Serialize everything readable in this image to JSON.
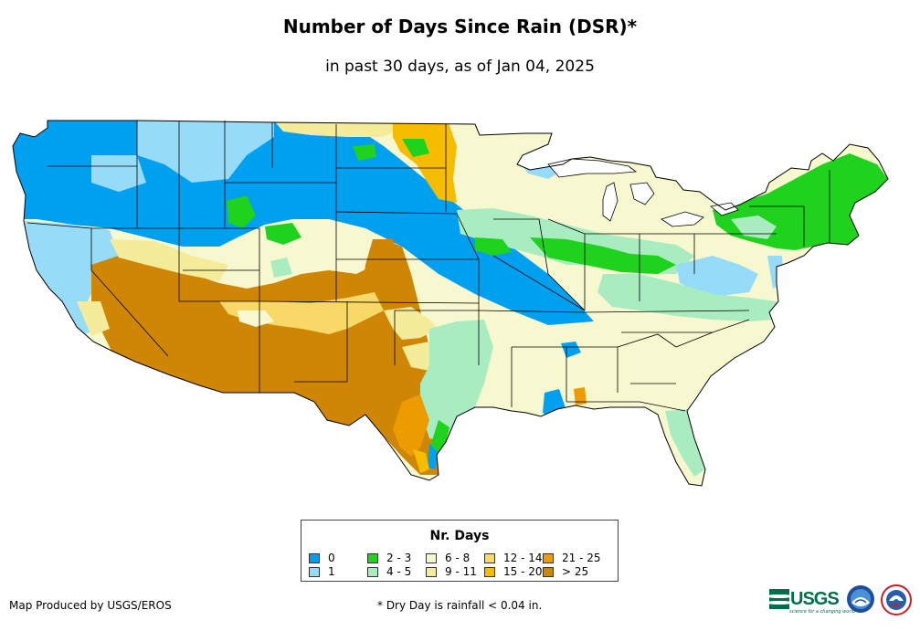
{
  "title": "Number of Days Since Rain (DSR)*",
  "subtitle": "in past 30 days, as of Jan 04, 2025",
  "legend": {
    "title": "Nr. Days",
    "items": [
      {
        "label": "0",
        "color": "#00a0f0"
      },
      {
        "label": "1",
        "color": "#96dcf8"
      },
      {
        "label": "2 - 3",
        "color": "#1ed21e"
      },
      {
        "label": "4 - 5",
        "color": "#a8ecc0"
      },
      {
        "label": "6 - 8",
        "color": "#f8f8d0"
      },
      {
        "label": "9 - 11",
        "color": "#f4ec9a"
      },
      {
        "label": "12 - 14",
        "color": "#f8d866"
      },
      {
        "label": "15 - 20",
        "color": "#f6bc00"
      },
      {
        "label": "21 - 25",
        "color": "#ec9c00"
      },
      {
        "label": "> 25",
        "color": "#cf8604"
      }
    ]
  },
  "footer": {
    "producer": "Map Produced by USGS/EROS",
    "footnote": "* Dry Day is rainfall < 0.04 in."
  },
  "logos": {
    "usgs": "USGS",
    "usgs_tagline": "science for a changing world",
    "noaa": "noaa-logo",
    "nws": "nws-logo"
  }
}
